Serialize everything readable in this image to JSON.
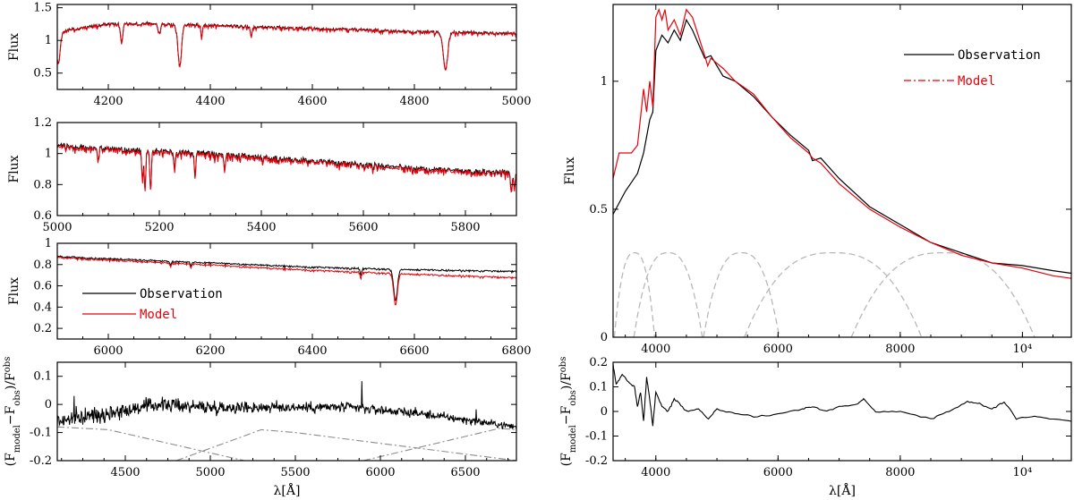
{
  "colors": {
    "observation": "#000000",
    "model": "#e8000b",
    "filter": "#b8b8b8",
    "filter_dashdot": "#8c8c8c"
  },
  "chart_data": [
    {
      "id": "p1",
      "type": "line",
      "xlim": [
        4100,
        5000
      ],
      "ylim": [
        0.25,
        1.55
      ],
      "xticks": [
        4200,
        4400,
        4600,
        4800,
        5000
      ],
      "xticklabels": [
        "4200",
        "4400",
        "4600",
        "4800",
        "5000"
      ],
      "yticks": [
        0.5,
        1,
        1.5
      ],
      "yticklabels": [
        "0.5",
        "1",
        "1.5"
      ],
      "ylabel": "Flux",
      "xlabel": "",
      "continuum": [
        [
          4100,
          1.15
        ],
        [
          4200,
          1.27
        ],
        [
          4300,
          1.27
        ],
        [
          4500,
          1.22
        ],
        [
          4700,
          1.18
        ],
        [
          4800,
          1.15
        ],
        [
          4900,
          1.14
        ],
        [
          5000,
          1.12
        ]
      ],
      "lines": [
        [
          4340,
          0.62,
          5
        ],
        [
          4861,
          0.58,
          6
        ],
        [
          4226,
          0.3,
          3
        ],
        [
          4383,
          0.2,
          2
        ],
        [
          4300,
          0.15,
          3
        ],
        [
          4480,
          0.15,
          2
        ],
        [
          4102,
          0.5,
          5
        ]
      ],
      "noise": 0.05,
      "model_offset": -0.01,
      "series": [
        {
          "name": "Observation"
        },
        {
          "name": "Model"
        }
      ]
    },
    {
      "id": "p2",
      "type": "line",
      "xlim": [
        5000,
        5900
      ],
      "ylim": [
        0.6,
        1.2
      ],
      "xticks": [
        5000,
        5200,
        5400,
        5600,
        5800
      ],
      "xticklabels": [
        "5000",
        "5200",
        "5400",
        "5600",
        "5800"
      ],
      "yticks": [
        0.6,
        0.8,
        1,
        1.2
      ],
      "yticklabels": [
        "0.6",
        "0.8",
        "1",
        "1.2"
      ],
      "ylabel": "Flux",
      "xlabel": "",
      "continuum": [
        [
          5000,
          1.06
        ],
        [
          5200,
          1.03
        ],
        [
          5400,
          0.99
        ],
        [
          5600,
          0.94
        ],
        [
          5800,
          0.9
        ],
        [
          5900,
          0.89
        ]
      ],
      "lines": [
        [
          5167,
          0.2,
          2
        ],
        [
          5172,
          0.25,
          2
        ],
        [
          5183,
          0.26,
          2
        ],
        [
          5270,
          0.15,
          2
        ],
        [
          5328,
          0.1,
          2
        ],
        [
          5890,
          0.12,
          2
        ],
        [
          5896,
          0.11,
          2
        ],
        [
          5080,
          0.08,
          2
        ],
        [
          5230,
          0.1,
          2
        ]
      ],
      "noise": 0.04,
      "model_offset": -0.01,
      "series": [
        {
          "name": "Observation"
        },
        {
          "name": "Model"
        }
      ]
    },
    {
      "id": "p3",
      "type": "line",
      "xlim": [
        5900,
        6800
      ],
      "ylim": [
        0.1,
        1.0
      ],
      "xticks": [
        6000,
        6200,
        6400,
        6600,
        6800
      ],
      "xticklabels": [
        "6000",
        "6200",
        "6400",
        "6600",
        "6800"
      ],
      "yticks": [
        0.2,
        0.4,
        0.6,
        0.8,
        1
      ],
      "yticklabels": [
        "0.2",
        "0.4",
        "0.6",
        "0.8",
        "1"
      ],
      "ylabel": "Flux",
      "xlabel": "",
      "continuum": [
        [
          5900,
          0.88
        ],
        [
          6200,
          0.82
        ],
        [
          6400,
          0.78
        ],
        [
          6560,
          0.76
        ],
        [
          6800,
          0.74
        ]
      ],
      "model_continuum": [
        [
          5900,
          0.87
        ],
        [
          6200,
          0.8
        ],
        [
          6400,
          0.75
        ],
        [
          6560,
          0.72
        ],
        [
          6800,
          0.68
        ]
      ],
      "lines": [
        [
          6563,
          0.3,
          5
        ],
        [
          6495,
          0.06,
          2
        ],
        [
          6162,
          0.04,
          2
        ],
        [
          6122,
          0.03,
          2
        ]
      ],
      "noise": 0.015,
      "legend": {
        "loc": "lower-left",
        "entries": [
          "Observation",
          "Model"
        ]
      }
    },
    {
      "id": "p4",
      "type": "line",
      "xlim": [
        4100,
        6800
      ],
      "ylim": [
        -0.2,
        0.15
      ],
      "xticks": [
        4500,
        5000,
        5500,
        6000,
        6500
      ],
      "xticklabels": [
        "4500",
        "5000",
        "5500",
        "6000",
        "6500"
      ],
      "yticks": [
        -0.2,
        -0.1,
        0,
        0.1
      ],
      "yticklabels": [
        "-0.2",
        "-0.1",
        "0",
        "0.1"
      ],
      "ylabel": "(F_model - F_obs)/F_obs",
      "xlabel": "λ[Å]",
      "residual_trend": [
        [
          4100,
          -0.06
        ],
        [
          4400,
          -0.03
        ],
        [
          4700,
          0.0
        ],
        [
          5000,
          -0.01
        ],
        [
          5400,
          -0.01
        ],
        [
          5800,
          -0.01
        ],
        [
          6200,
          -0.03
        ],
        [
          6800,
          -0.08
        ]
      ],
      "spikes": [
        [
          5890,
          0.1
        ],
        [
          6563,
          0.05
        ],
        [
          4200,
          0.07
        ]
      ],
      "filters": [
        {
          "name": "f1",
          "points": [
            [
              4100,
              -0.08
            ],
            [
              4400,
              -0.09
            ],
            [
              5200,
              -0.2
            ]
          ]
        },
        {
          "name": "f2",
          "points": [
            [
              4800,
              -0.2
            ],
            [
              5300,
              -0.09
            ],
            [
              5500,
              -0.1
            ],
            [
              6800,
              -0.2
            ]
          ]
        },
        {
          "name": "f3",
          "points": [
            [
              5900,
              -0.2
            ],
            [
              6700,
              -0.085
            ],
            [
              6800,
              -0.09
            ]
          ]
        }
      ]
    },
    {
      "id": "p5",
      "type": "line",
      "xlim": [
        3300,
        10800
      ],
      "ylim": [
        0,
        1.3
      ],
      "xticks": [
        4000,
        6000,
        8000,
        10000
      ],
      "xticklabels": [
        "4000",
        "6000",
        "8000",
        "10⁴"
      ],
      "yticks": [
        0,
        0.5,
        1
      ],
      "yticklabels": [
        "0",
        "0.5",
        "1"
      ],
      "ylabel": "Flux",
      "xlabel": "",
      "observation": [
        [
          3300,
          0.48
        ],
        [
          3500,
          0.57
        ],
        [
          3700,
          0.64
        ],
        [
          3800,
          0.72
        ],
        [
          3900,
          0.85
        ],
        [
          3950,
          0.88
        ],
        [
          4000,
          1.12
        ],
        [
          4100,
          1.18
        ],
        [
          4200,
          1.15
        ],
        [
          4300,
          1.2
        ],
        [
          4400,
          1.16
        ],
        [
          4500,
          1.24
        ],
        [
          4600,
          1.2
        ],
        [
          4800,
          1.09
        ],
        [
          4900,
          1.1
        ],
        [
          5100,
          1.02
        ],
        [
          5300,
          1.0
        ],
        [
          5600,
          0.94
        ],
        [
          5900,
          0.86
        ],
        [
          6200,
          0.79
        ],
        [
          6500,
          0.73
        ],
        [
          6563,
          0.69
        ],
        [
          6700,
          0.7
        ],
        [
          7000,
          0.62
        ],
        [
          7500,
          0.51
        ],
        [
          8000,
          0.44
        ],
        [
          8500,
          0.37
        ],
        [
          9000,
          0.33
        ],
        [
          9500,
          0.29
        ],
        [
          10000,
          0.28
        ],
        [
          10500,
          0.26
        ],
        [
          10800,
          0.25
        ]
      ],
      "model": [
        [
          3300,
          0.62
        ],
        [
          3400,
          0.72
        ],
        [
          3600,
          0.72
        ],
        [
          3700,
          0.75
        ],
        [
          3800,
          0.97
        ],
        [
          3850,
          0.88
        ],
        [
          3900,
          1.0
        ],
        [
          3950,
          0.9
        ],
        [
          4000,
          1.25
        ],
        [
          4050,
          1.28
        ],
        [
          4100,
          1.24
        ],
        [
          4150,
          1.28
        ],
        [
          4200,
          1.2
        ],
        [
          4300,
          1.24
        ],
        [
          4400,
          1.18
        ],
        [
          4500,
          1.28
        ],
        [
          4600,
          1.25
        ],
        [
          4800,
          1.1
        ],
        [
          4850,
          1.06
        ],
        [
          4900,
          1.09
        ],
        [
          5100,
          1.05
        ],
        [
          5300,
          1.0
        ],
        [
          5600,
          0.95
        ],
        [
          5900,
          0.86
        ],
        [
          6200,
          0.78
        ],
        [
          6500,
          0.72
        ],
        [
          6563,
          0.7
        ],
        [
          6700,
          0.68
        ],
        [
          7000,
          0.6
        ],
        [
          7500,
          0.5
        ],
        [
          8000,
          0.43
        ],
        [
          8500,
          0.37
        ],
        [
          9000,
          0.32
        ],
        [
          9500,
          0.29
        ],
        [
          10000,
          0.27
        ],
        [
          10500,
          0.24
        ],
        [
          10800,
          0.23
        ]
      ],
      "filters": [
        {
          "center": 3650,
          "halfwidth": 330,
          "peak": 0.33
        },
        {
          "center": 4200,
          "halfwidth": 560,
          "peak": 0.33
        },
        {
          "center": 5400,
          "halfwidth": 620,
          "peak": 0.33
        },
        {
          "center": 6900,
          "halfwidth": 1450,
          "peak": 0.33
        },
        {
          "center": 8700,
          "halfwidth": 1500,
          "peak": 0.33
        }
      ],
      "legend": {
        "loc": "top-right",
        "entries": [
          "Observation",
          "Model"
        ]
      }
    },
    {
      "id": "p6",
      "type": "line",
      "xlim": [
        3300,
        10800
      ],
      "ylim": [
        -0.2,
        0.2
      ],
      "xticks": [
        4000,
        6000,
        8000,
        10000
      ],
      "xticklabels": [
        "4000",
        "6000",
        "8000",
        "10⁴"
      ],
      "yticks": [
        -0.2,
        -0.1,
        0,
        0.1,
        0.2
      ],
      "yticklabels": [
        "-0.2",
        "-0.1",
        "0",
        "0.1",
        "0.2"
      ],
      "ylabel": "(F_model - F_obs)/F_obs",
      "xlabel": "λ[Å]",
      "residual": [
        [
          3300,
          0.19
        ],
        [
          3350,
          0.11
        ],
        [
          3450,
          0.15
        ],
        [
          3550,
          0.12
        ],
        [
          3650,
          0.1
        ],
        [
          3700,
          0.02
        ],
        [
          3750,
          0.08
        ],
        [
          3800,
          -0.04
        ],
        [
          3850,
          0.14
        ],
        [
          3900,
          0.05
        ],
        [
          3950,
          -0.06
        ],
        [
          4000,
          0.08
        ],
        [
          4100,
          0.02
        ],
        [
          4200,
          0.0
        ],
        [
          4300,
          0.05
        ],
        [
          4400,
          0.03
        ],
        [
          4500,
          0.0
        ],
        [
          4700,
          0.01
        ],
        [
          4860,
          -0.03
        ],
        [
          5000,
          0.01
        ],
        [
          5300,
          -0.01
        ],
        [
          5600,
          -0.02
        ],
        [
          6000,
          -0.01
        ],
        [
          6400,
          0.01
        ],
        [
          6563,
          0.02
        ],
        [
          6800,
          0.0
        ],
        [
          7000,
          0.02
        ],
        [
          7300,
          0.03
        ],
        [
          7400,
          0.05
        ],
        [
          7600,
          0.0
        ],
        [
          8000,
          0.0
        ],
        [
          8500,
          -0.03
        ],
        [
          8800,
          0.0
        ],
        [
          9100,
          0.04
        ],
        [
          9300,
          0.03
        ],
        [
          9500,
          0.01
        ],
        [
          9700,
          0.04
        ],
        [
          9900,
          -0.03
        ],
        [
          10200,
          -0.02
        ],
        [
          10500,
          -0.03
        ],
        [
          10800,
          -0.04
        ]
      ]
    }
  ]
}
